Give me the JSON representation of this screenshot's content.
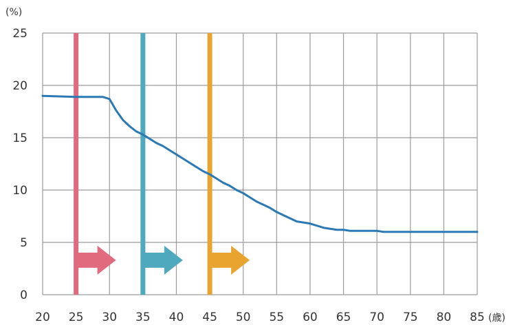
{
  "chart_data": {
    "type": "line",
    "title": "",
    "xlabel": "",
    "ylabel": "",
    "y_unit": "(%)",
    "x_unit": "(歳)",
    "xlim": [
      20,
      85
    ],
    "ylim": [
      0,
      25
    ],
    "x_ticks": [
      "20",
      "25",
      "30",
      "35",
      "40",
      "45",
      "50",
      "55",
      "60",
      "65",
      "70",
      "75",
      "80",
      "85"
    ],
    "y_ticks": [
      "0",
      "5",
      "10",
      "15",
      "20",
      "25"
    ],
    "grid": true,
    "legend": "none",
    "series": [
      {
        "color": "#2a78b4",
        "x": [
          20,
          25,
          29,
          30,
          31,
          32,
          33,
          34,
          35,
          36,
          37,
          38,
          39,
          40,
          41,
          42,
          43,
          44,
          45,
          46,
          47,
          48,
          49,
          50,
          51,
          52,
          53,
          54,
          55,
          56,
          57,
          58,
          59,
          60,
          61,
          62,
          63,
          64,
          65,
          66,
          67,
          68,
          69,
          70,
          71,
          75,
          80,
          85
        ],
        "y": [
          19.0,
          18.9,
          18.9,
          18.7,
          17.6,
          16.7,
          16.1,
          15.6,
          15.3,
          14.9,
          14.5,
          14.2,
          13.8,
          13.4,
          13.0,
          12.6,
          12.2,
          11.8,
          11.5,
          11.1,
          10.7,
          10.4,
          10.0,
          9.7,
          9.3,
          8.9,
          8.6,
          8.3,
          7.9,
          7.6,
          7.3,
          7.0,
          6.9,
          6.8,
          6.6,
          6.4,
          6.3,
          6.2,
          6.2,
          6.1,
          6.1,
          6.1,
          6.1,
          6.1,
          6.0,
          6.0,
          6.0,
          6.0
        ]
      }
    ],
    "markers": [
      {
        "x": 25,
        "color": "#e26a7e"
      },
      {
        "x": 35,
        "color": "#4fa9be"
      },
      {
        "x": 45,
        "color": "#e8a42e"
      }
    ]
  }
}
